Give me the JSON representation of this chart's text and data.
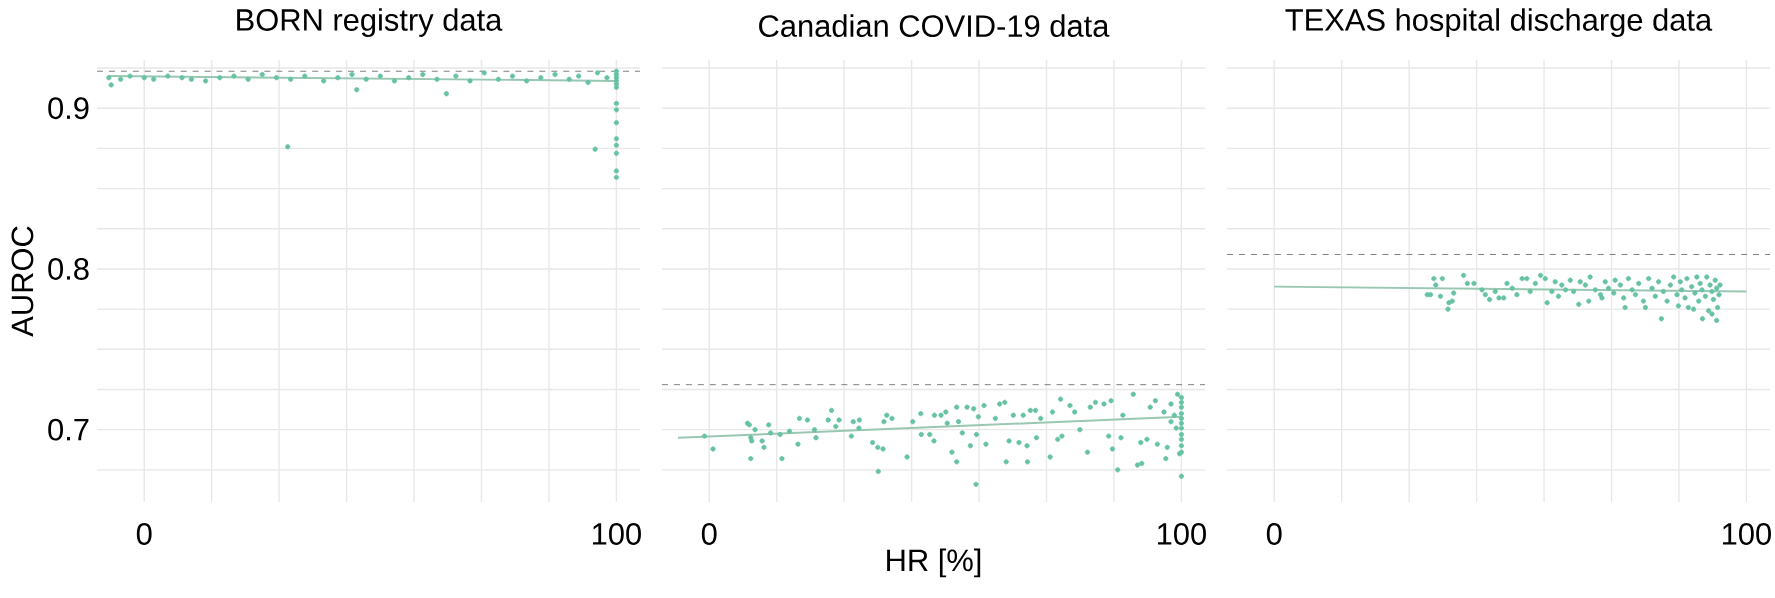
{
  "chart_data": [
    {
      "type": "scatter",
      "title": "BORN registry data",
      "ylabel": "AUROC",
      "xlim": [
        -10,
        105
      ],
      "ylim": [
        0.655,
        0.93
      ],
      "grid": true,
      "xticks": [
        0,
        {
          "value": 14.29,
          "label": null
        },
        {
          "value": 28.57,
          "label": null
        },
        {
          "value": 42.86,
          "label": null
        },
        {
          "value": 57.14,
          "label": null
        },
        {
          "value": 71.43,
          "label": null
        },
        {
          "value": 85.71,
          "label": null
        },
        100
      ],
      "yticks": [
        {
          "value": 0.675,
          "label": null
        },
        0.7,
        {
          "value": 0.725,
          "label": null
        },
        {
          "value": 0.75,
          "label": null
        },
        {
          "value": 0.775,
          "label": null
        },
        0.8,
        {
          "value": 0.825,
          "label": null
        },
        {
          "value": 0.85,
          "label": null
        },
        {
          "value": 0.875,
          "label": null
        },
        0.9,
        {
          "value": 0.925,
          "label": null
        }
      ],
      "series": [
        {
          "marker": "circle",
          "color": "#66c2a5",
          "x": [
            -7.5,
            -7,
            -5,
            -3,
            0,
            2,
            5,
            8,
            10,
            13,
            16,
            19,
            22,
            25,
            28,
            31,
            34,
            38,
            41,
            44,
            45,
            47,
            50,
            53,
            56,
            59,
            62,
            64,
            66,
            69,
            72,
            75,
            78,
            81,
            84,
            87,
            90,
            92,
            94,
            96,
            98,
            30.4,
            95.5,
            100,
            100,
            100,
            100,
            100,
            100,
            100,
            100,
            100,
            100,
            100,
            100,
            100,
            100
          ],
          "values": [
            0.919,
            0.9145,
            0.918,
            0.92,
            0.919,
            0.918,
            0.92,
            0.919,
            0.918,
            0.917,
            0.919,
            0.92,
            0.918,
            0.921,
            0.919,
            0.918,
            0.92,
            0.917,
            0.919,
            0.921,
            0.9115,
            0.918,
            0.92,
            0.917,
            0.919,
            0.921,
            0.918,
            0.909,
            0.92,
            0.917,
            0.922,
            0.918,
            0.92,
            0.917,
            0.919,
            0.921,
            0.918,
            0.92,
            0.916,
            0.922,
            0.919,
            0.876,
            0.8745,
            0.923,
            0.921,
            0.919,
            0.917,
            0.915,
            0.913,
            0.903,
            0.899,
            0.891,
            0.881,
            0.877,
            0.872,
            0.861,
            0.857
          ]
        },
        {
          "type": "line",
          "color": "#99c7b1",
          "x": [
            -7.5,
            100
          ],
          "values": [
            0.92,
            0.917
          ]
        }
      ],
      "ref_lines": [
        {
          "axis": "y",
          "value": 0.923,
          "color": "#7f7f7f",
          "line_style": "dashed"
        }
      ]
    },
    {
      "type": "scatter",
      "title": "Canadian COVID-19 data",
      "xlabel": "HR [%]",
      "tick_labels": "x",
      "xlim": [
        -10,
        105
      ],
      "ylim": [
        0.655,
        0.93
      ],
      "grid": true,
      "xticks": [
        0,
        {
          "value": 14.29,
          "label": null
        },
        {
          "value": 28.57,
          "label": null
        },
        {
          "value": 42.86,
          "label": null
        },
        {
          "value": 57.14,
          "label": null
        },
        {
          "value": 71.43,
          "label": null
        },
        {
          "value": 85.71,
          "label": null
        },
        100
      ],
      "yticks": [
        {
          "value": 0.675,
          "label": null
        },
        0.7,
        {
          "value": 0.725,
          "label": null
        },
        {
          "value": 0.75,
          "label": null
        },
        {
          "value": 0.775,
          "label": null
        },
        0.8,
        {
          "value": 0.825,
          "label": null
        },
        {
          "value": 0.85,
          "label": null
        },
        {
          "value": 0.875,
          "label": null
        },
        0.9,
        {
          "value": 0.925,
          "label": null
        }
      ],
      "series": [
        {
          "marker": "circle",
          "color": "#66c2a5",
          "x": [
            -1.0,
            0.8,
            8.1,
            8.5,
            8.8,
            9.0,
            8.8,
            9.7,
            11.2,
            11.6,
            12.6,
            13.0,
            15.0,
            15.4,
            17.0,
            18.8,
            19.1,
            20.8,
            22.6,
            22.3,
            25.2,
            25.9,
            27.5,
            26.8,
            30.1,
            30.5,
            31.8,
            31.7,
            34.6,
            35.7,
            36.8,
            35.8,
            37.0,
            37.6,
            38.7,
            41.9,
            43.1,
            44.8,
            44.9,
            46.7,
            47.6,
            47.7,
            49.1,
            50.1,
            50.4,
            51.4,
            52.4,
            52.4,
            52.8,
            53.6,
            54.6,
            55.3,
            56.0,
            56.5,
            56.6,
            57.0,
            58.2,
            58.6,
            60.6,
            61.5,
            62.6,
            62.9,
            63.5,
            64.4,
            65.6,
            66.5,
            67.3,
            67.4,
            68.0,
            69.1,
            69.3,
            70.2,
            72.2,
            72.7,
            73.8,
            74.4,
            74.7,
            76.4,
            77.4,
            78.5,
            80.1,
            80.7,
            81.8,
            83.6,
            84.6,
            85.1,
            85.4,
            86.5,
            87.2,
            87.6,
            89.8,
            90.7,
            91.4,
            91.6,
            92.7,
            93.4,
            94.5,
            94.9,
            96.3,
            96.7,
            97.0,
            97.8,
            97.8,
            98.5,
            98.9,
            99.2,
            99.6,
            100,
            100,
            100,
            100,
            100,
            100,
            100,
            100,
            100,
            100,
            100,
            100
          ],
          "values": [
            0.696,
            0.688,
            0.704,
            0.703,
            0.695,
            0.693,
            0.682,
            0.7,
            0.693,
            0.689,
            0.703,
            0.698,
            0.697,
            0.682,
            0.699,
            0.691,
            0.707,
            0.706,
            0.695,
            0.7,
            0.706,
            0.712,
            0.706,
            0.702,
            0.696,
            0.705,
            0.706,
            0.701,
            0.692,
            0.689,
            0.688,
            0.674,
            0.705,
            0.709,
            0.707,
            0.683,
            0.705,
            0.71,
            0.697,
            0.697,
            0.693,
            0.709,
            0.709,
            0.711,
            0.704,
            0.686,
            0.714,
            0.68,
            0.705,
            0.698,
            0.714,
            0.69,
            0.713,
            0.666,
            0.697,
            0.708,
            0.715,
            0.691,
            0.707,
            0.716,
            0.717,
            0.68,
            0.693,
            0.709,
            0.692,
            0.709,
            0.69,
            0.68,
            0.712,
            0.712,
            0.695,
            0.707,
            0.683,
            0.711,
            0.694,
            0.719,
            0.696,
            0.715,
            0.711,
            0.7,
            0.686,
            0.714,
            0.717,
            0.716,
            0.696,
            0.718,
            0.688,
            0.675,
            0.695,
            0.709,
            0.722,
            0.678,
            0.692,
            0.679,
            0.694,
            0.714,
            0.718,
            0.691,
            0.711,
            0.682,
            0.689,
            0.716,
            0.705,
            0.709,
            0.701,
            0.722,
            0.685,
            0.72,
            0.717,
            0.714,
            0.71,
            0.707,
            0.704,
            0.701,
            0.697,
            0.694,
            0.69,
            0.686,
            0.671
          ]
        },
        {
          "type": "line",
          "color": "#99c7b1",
          "x": [
            -6.6,
            100
          ],
          "values": [
            0.695,
            0.708
          ]
        }
      ],
      "ref_lines": [
        {
          "axis": "y",
          "value": 0.728,
          "color": "#7f7f7f",
          "line_style": "dashed"
        }
      ]
    },
    {
      "type": "scatter",
      "title": "TEXAS hospital discharge data",
      "tick_labels": "x",
      "xlim": [
        -10,
        105
      ],
      "ylim": [
        0.655,
        0.93
      ],
      "grid": true,
      "xticks": [
        0,
        {
          "value": 14.29,
          "label": null
        },
        {
          "value": 28.57,
          "label": null
        },
        {
          "value": 42.86,
          "label": null
        },
        {
          "value": 57.14,
          "label": null
        },
        {
          "value": 71.43,
          "label": null
        },
        {
          "value": 85.71,
          "label": null
        },
        100
      ],
      "yticks": [
        {
          "value": 0.675,
          "label": null
        },
        0.7,
        {
          "value": 0.725,
          "label": null
        },
        {
          "value": 0.75,
          "label": null
        },
        {
          "value": 0.775,
          "label": null
        },
        0.8,
        {
          "value": 0.825,
          "label": null
        },
        {
          "value": 0.85,
          "label": null
        },
        {
          "value": 0.875,
          "label": null
        },
        0.9,
        {
          "value": 0.925,
          "label": null
        }
      ],
      "series": [
        {
          "marker": "circle",
          "color": "#66c2a5",
          "x": [
            32.4,
            33.1,
            33.8,
            34.2,
            35.2,
            35.6,
            36.8,
            37.0,
            37.7,
            38.0,
            40.1,
            40.9,
            42.3,
            44.0,
            44.7,
            45.6,
            46.8,
            47.6,
            48.6,
            49.3,
            50.4,
            51.4,
            52.5,
            53.5,
            54.2,
            55.3,
            56.4,
            57.4,
            57.8,
            58.8,
            59.5,
            60.2,
            60.9,
            61.7,
            62.7,
            63.4,
            64.5,
            64.8,
            65.9,
            66.6,
            66.9,
            68.0,
            69.1,
            69.4,
            70.1,
            70.8,
            71.9,
            72.2,
            73.3,
            74.0,
            74.3,
            75.0,
            75.8,
            76.5,
            77.2,
            78.2,
            78.6,
            79.3,
            80.0,
            80.7,
            81.4,
            82.0,
            82.4,
            83.2,
            83.9,
            84.6,
            85.3,
            85.6,
            86.0,
            86.3,
            87.0,
            87.4,
            87.7,
            88.4,
            88.8,
            89.1,
            89.5,
            89.9,
            90.2,
            90.6,
            90.7,
            91.3,
            91.6,
            92.0,
            92.3,
            92.7,
            92.7,
            93.0,
            93.4,
            93.7,
            93.7,
            93.9,
            94.2,
            94.4
          ],
          "values": [
            0.784,
            0.784,
            0.794,
            0.79,
            0.783,
            0.794,
            0.775,
            0.779,
            0.78,
            0.785,
            0.796,
            0.791,
            0.791,
            0.787,
            0.784,
            0.781,
            0.786,
            0.782,
            0.782,
            0.791,
            0.788,
            0.784,
            0.794,
            0.794,
            0.786,
            0.791,
            0.796,
            0.794,
            0.779,
            0.786,
            0.792,
            0.783,
            0.79,
            0.787,
            0.793,
            0.786,
            0.778,
            0.792,
            0.79,
            0.78,
            0.795,
            0.787,
            0.784,
            0.782,
            0.792,
            0.788,
            0.785,
            0.793,
            0.79,
            0.782,
            0.776,
            0.794,
            0.787,
            0.784,
            0.791,
            0.78,
            0.776,
            0.794,
            0.788,
            0.783,
            0.792,
            0.769,
            0.786,
            0.78,
            0.79,
            0.795,
            0.784,
            0.777,
            0.792,
            0.787,
            0.782,
            0.794,
            0.776,
            0.789,
            0.775,
            0.785,
            0.795,
            0.78,
            0.791,
            0.787,
            0.769,
            0.783,
            0.795,
            0.774,
            0.79,
            0.786,
            0.772,
            0.781,
            0.793,
            0.768,
            0.788,
            0.776,
            0.784,
            0.79
          ]
        },
        {
          "type": "line",
          "color": "#99c7b1",
          "x": [
            0,
            100
          ],
          "values": [
            0.789,
            0.786
          ]
        }
      ],
      "ref_lines": [
        {
          "axis": "y",
          "value": 0.809,
          "color": "#7f7f7f",
          "line_style": "dashed"
        }
      ]
    }
  ]
}
